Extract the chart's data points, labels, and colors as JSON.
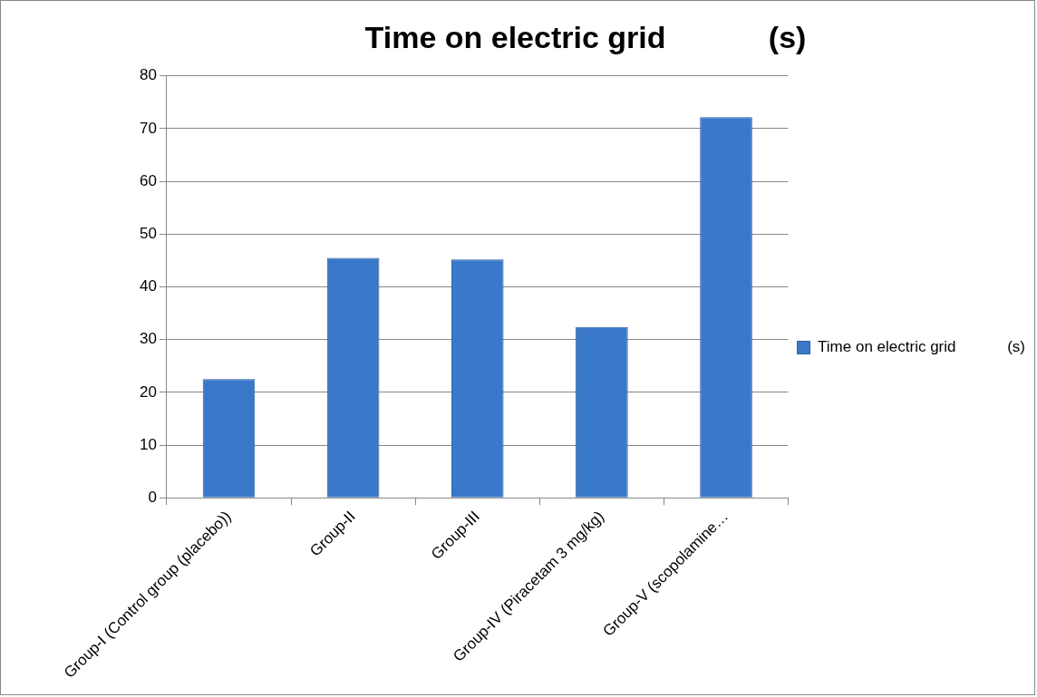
{
  "chart_data": {
    "type": "bar",
    "title": "Time on electric grid            (s)",
    "categories": [
      "Group-I (Control group (placebo))",
      "Group-II",
      "Group-III",
      "Group-IV (Piracetam 3 mg/kg)",
      "Group-V (scopolamine…"
    ],
    "series": [
      {
        "name": "Time on electric grid            (s)",
        "color": "#3a78c9",
        "values": [
          22.5,
          45.5,
          45.2,
          32.4,
          72.2
        ]
      }
    ],
    "ylim": [
      0,
      80
    ],
    "yticks": [
      0,
      10,
      20,
      30,
      40,
      50,
      60,
      70,
      80
    ],
    "grid": "y",
    "legend": "right"
  }
}
